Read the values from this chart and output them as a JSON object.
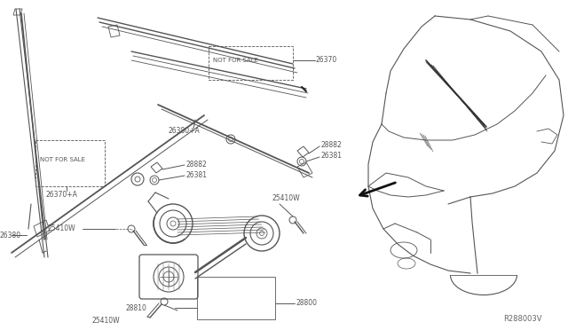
{
  "bg_color": "#ffffff",
  "line_color": "#555555",
  "label_color": "#555555",
  "diagram_id": "R288003V",
  "not_for_sale_text": "NOT FOR SALE",
  "parts_labels": {
    "26370pA": "26370+A",
    "26370": "26370",
    "26380": "26380",
    "26380pA": "26380+A",
    "28882": "28882",
    "26381": "26381",
    "25410W": "25410W",
    "28810": "28810",
    "28800": "28800"
  }
}
